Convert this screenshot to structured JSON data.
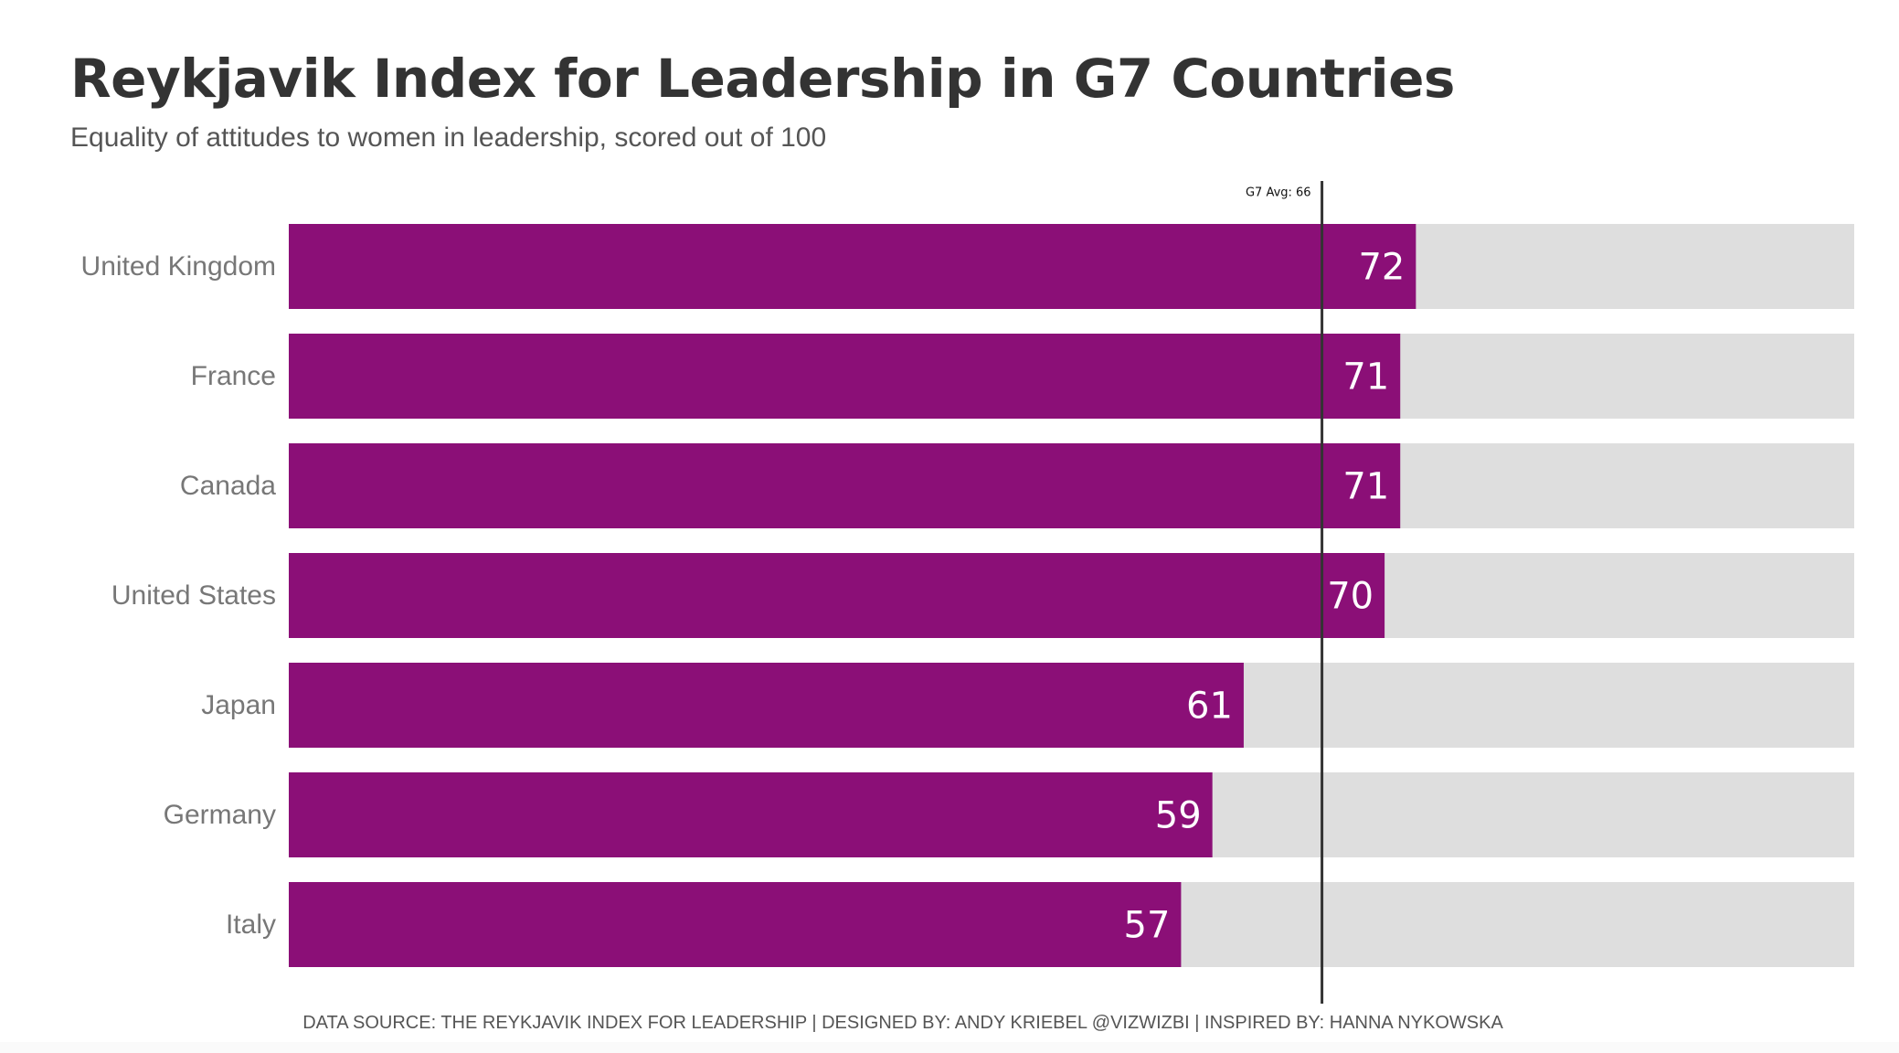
{
  "title": "Reykjavik Index for Leadership in G7 Countries",
  "subtitle": "Equality of attitudes to women in leadership, scored out of 100",
  "footer": "DATA SOURCE: THE REYKJAVIK INDEX FOR LEADERSHIP  |  DESIGNED BY: ANDY KRIEBEL @VIZWIZBI  |  INSPIRED BY: HANNA NYKOWSKA",
  "colors": {
    "bar": "#8b0f77",
    "track": "#dedede",
    "reference_line": "#333333",
    "label": "#777777",
    "value_label": "#ffffff"
  },
  "chart_data": {
    "type": "bar",
    "orientation": "horizontal",
    "categories": [
      "United Kingdom",
      "France",
      "Canada",
      "United States",
      "Japan",
      "Germany",
      "Italy"
    ],
    "values": [
      72,
      71,
      71,
      70,
      61,
      59,
      57
    ],
    "xlim": [
      0,
      100
    ],
    "grid": false,
    "background_track": true,
    "reference_line": {
      "value": 66,
      "label": "G7 Avg: 66"
    }
  }
}
